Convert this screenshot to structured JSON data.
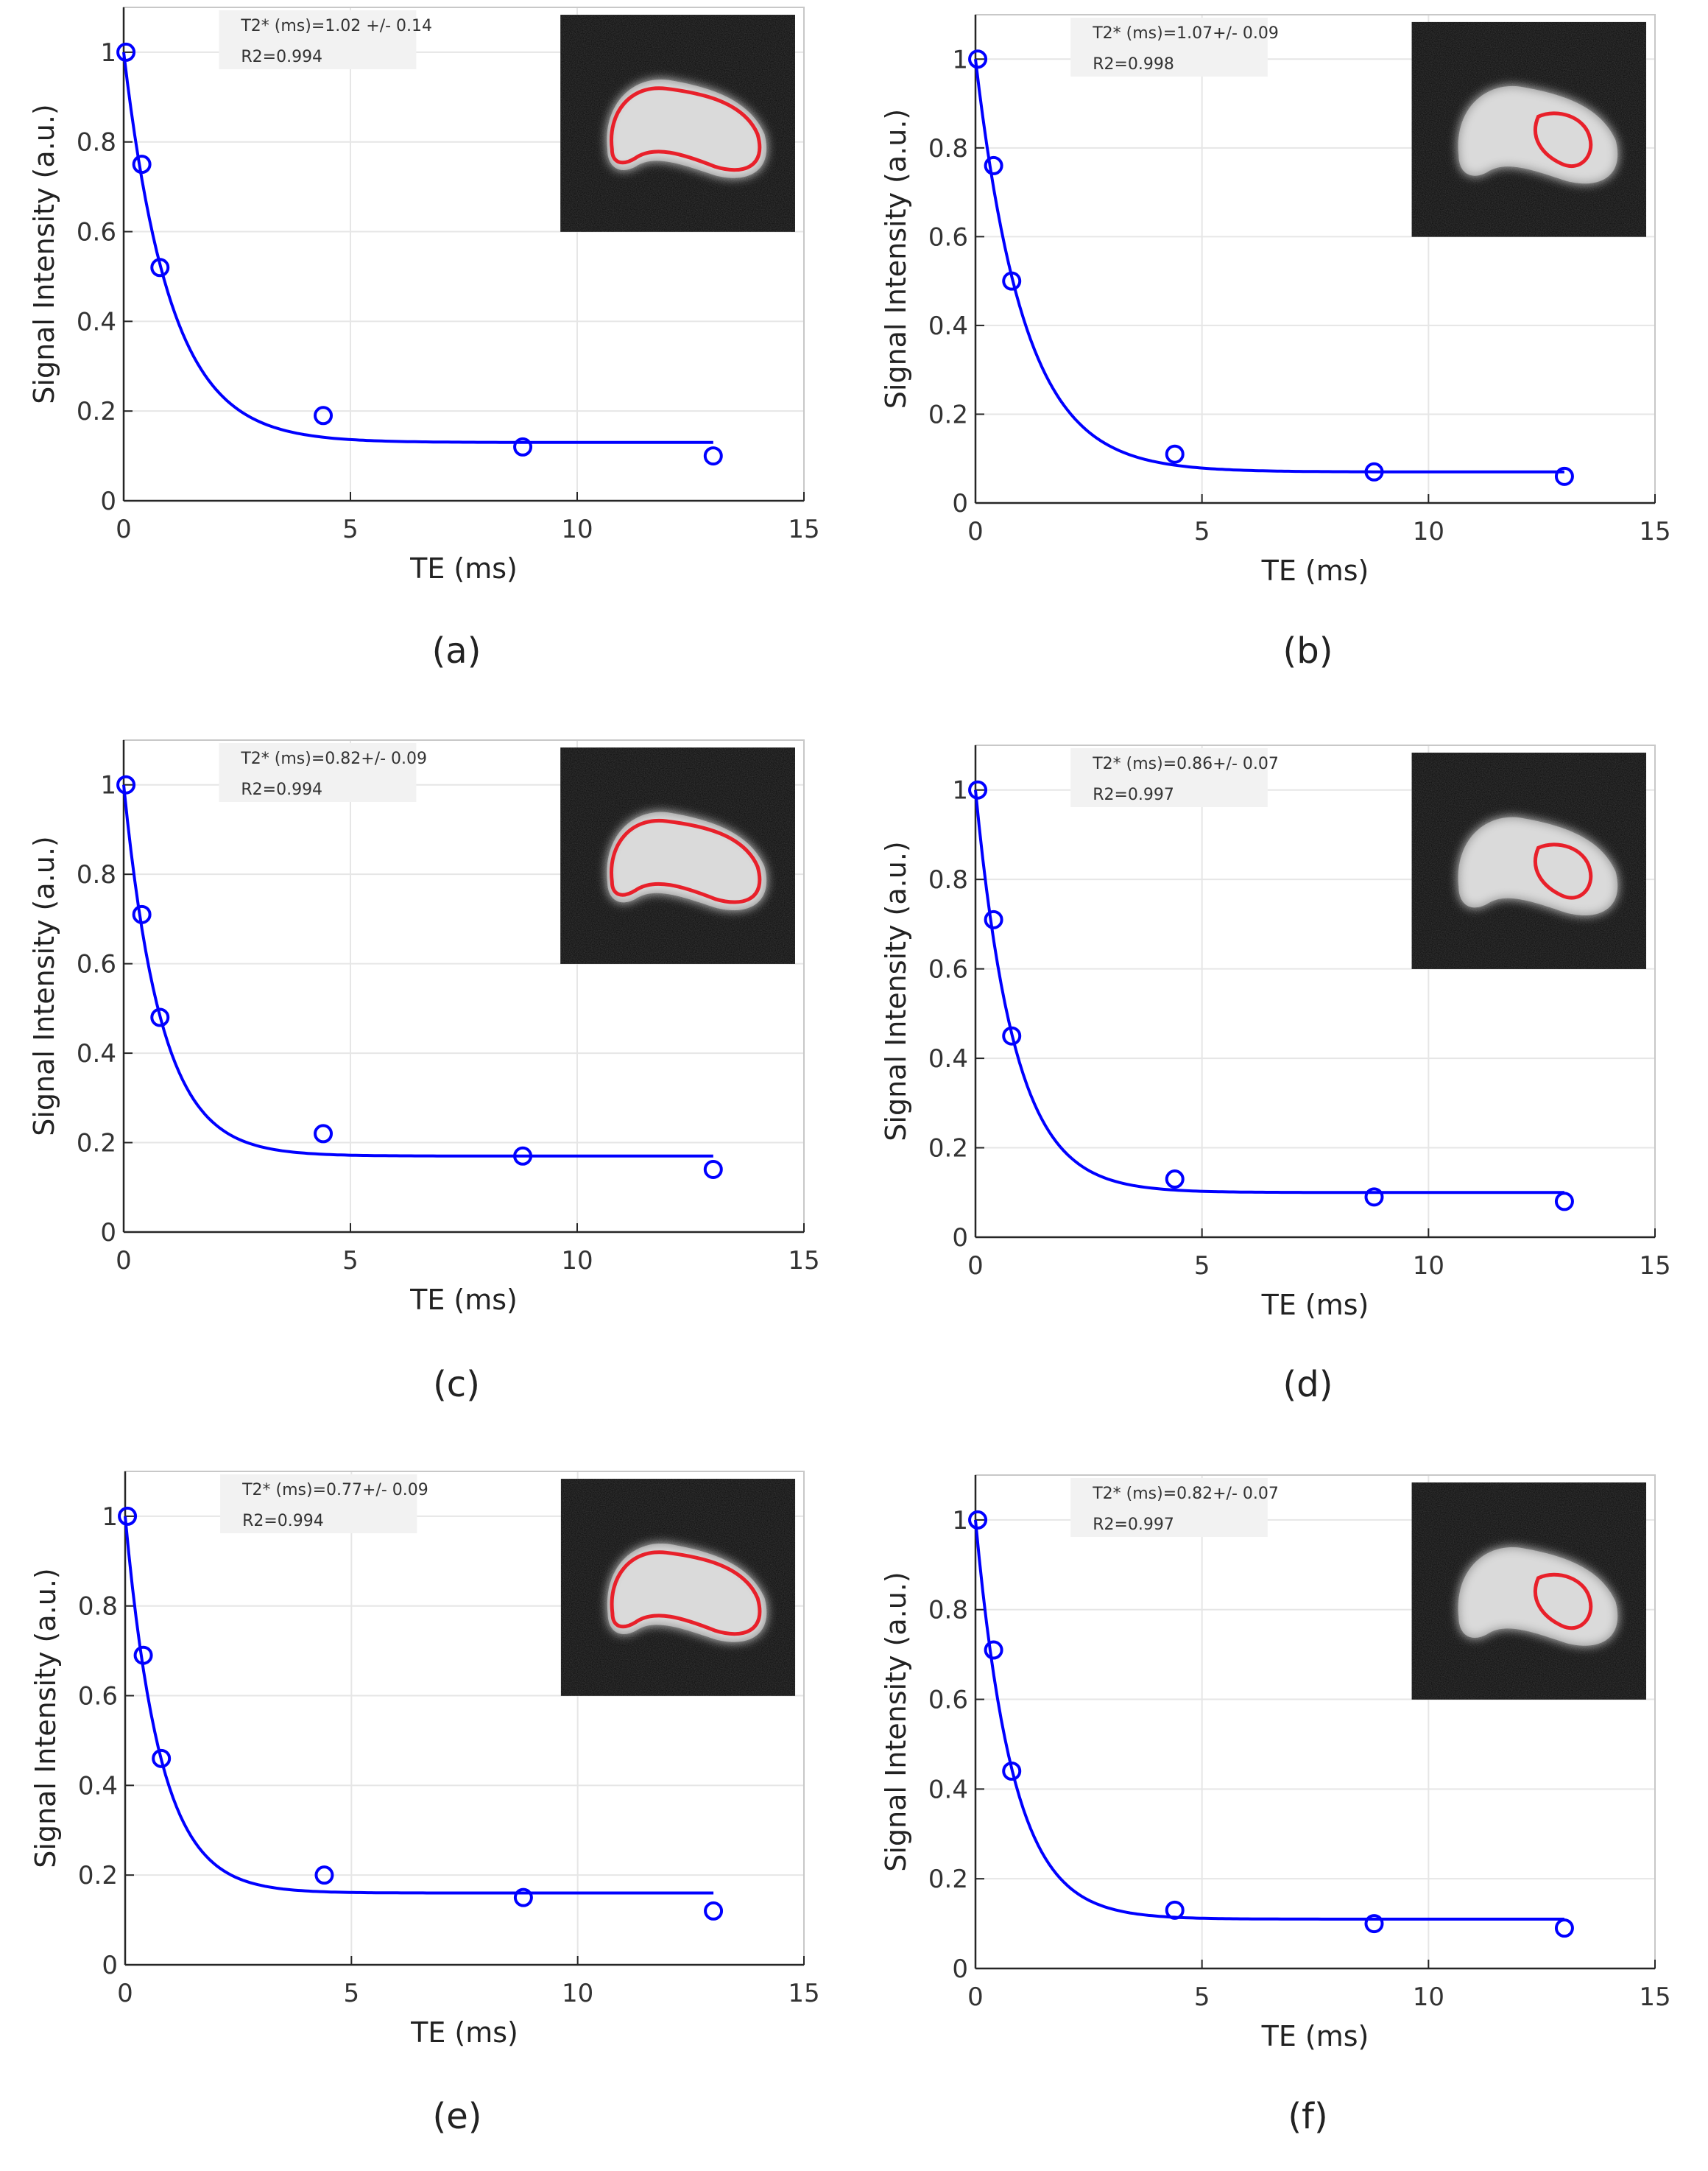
{
  "figure": {
    "panel_count": 6
  },
  "style": {
    "series_color": "#0000ff",
    "roi_color": "#e8202a",
    "grid_color": "#e6e6e6",
    "axis_color": "#262626",
    "annotation_bg": "#f2f2f2",
    "inset_bg": "#080808"
  },
  "chart_data": [
    {
      "panel": "(a)",
      "type": "scatter",
      "title": "",
      "xlabel": "TE (ms)",
      "ylabel": "Signal Intensity (a.u.)",
      "xlim": [
        0,
        15
      ],
      "ylim": [
        0,
        1.1
      ],
      "xticks": [
        "0",
        "5",
        "10",
        "15"
      ],
      "yticks": [
        "0",
        "0.2",
        "0.4",
        "0.6",
        "0.8",
        "1"
      ],
      "grid": true,
      "annotation": [
        "T2* (ms)=1.02 +/- 0.14",
        "R2=0.994"
      ],
      "inset": "whole ROI outline",
      "series": [
        {
          "name": "measured",
          "kind": "markers",
          "x": [
            0.05,
            0.4,
            0.8,
            4.4,
            8.8,
            13.0
          ],
          "y": [
            1.0,
            0.75,
            0.52,
            0.19,
            0.12,
            0.1
          ]
        },
        {
          "name": "fit",
          "kind": "curve",
          "model": {
            "amplitude": 0.87,
            "t2star": 1.02,
            "offset": 0.13,
            "x_range": [
              0,
              13
            ]
          }
        }
      ]
    },
    {
      "panel": "(b)",
      "type": "scatter",
      "title": "",
      "xlabel": "TE (ms)",
      "ylabel": "Signal Intensity (a.u.)",
      "xlim": [
        0,
        15
      ],
      "ylim": [
        0,
        1.1
      ],
      "xticks": [
        "0",
        "5",
        "10",
        "15"
      ],
      "yticks": [
        "0",
        "0.2",
        "0.4",
        "0.6",
        "0.8",
        "1"
      ],
      "grid": true,
      "annotation": [
        "T2* (ms)=1.07+/- 0.09",
        "R2=0.998"
      ],
      "inset": "sub ROI outline",
      "series": [
        {
          "name": "measured",
          "kind": "markers",
          "x": [
            0.05,
            0.4,
            0.8,
            4.4,
            8.8,
            13.0
          ],
          "y": [
            1.0,
            0.76,
            0.5,
            0.11,
            0.07,
            0.06
          ]
        },
        {
          "name": "fit",
          "kind": "curve",
          "model": {
            "amplitude": 0.93,
            "t2star": 1.07,
            "offset": 0.07,
            "x_range": [
              0,
              13
            ]
          }
        }
      ]
    },
    {
      "panel": "(c)",
      "type": "scatter",
      "title": "",
      "xlabel": "TE (ms)",
      "ylabel": "Signal Intensity (a.u.)",
      "xlim": [
        0,
        15
      ],
      "ylim": [
        0,
        1.1
      ],
      "xticks": [
        "0",
        "5",
        "10",
        "15"
      ],
      "yticks": [
        "0",
        "0.2",
        "0.4",
        "0.6",
        "0.8",
        "1"
      ],
      "grid": true,
      "annotation": [
        "T2* (ms)=0.82+/- 0.09",
        "R2=0.994"
      ],
      "inset": "whole ROI outline",
      "series": [
        {
          "name": "measured",
          "kind": "markers",
          "x": [
            0.05,
            0.4,
            0.8,
            4.4,
            8.8,
            13.0
          ],
          "y": [
            1.0,
            0.71,
            0.48,
            0.22,
            0.17,
            0.14
          ]
        },
        {
          "name": "fit",
          "kind": "curve",
          "model": {
            "amplitude": 0.83,
            "t2star": 0.82,
            "offset": 0.17,
            "x_range": [
              0,
              13
            ]
          }
        }
      ]
    },
    {
      "panel": "(d)",
      "type": "scatter",
      "title": "",
      "xlabel": "TE (ms)",
      "ylabel": "Signal Intensity (a.u.)",
      "xlim": [
        0,
        15
      ],
      "ylim": [
        0,
        1.1
      ],
      "xticks": [
        "0",
        "5",
        "10",
        "15"
      ],
      "yticks": [
        "0",
        "0.2",
        "0.4",
        "0.6",
        "0.8",
        "1"
      ],
      "grid": true,
      "annotation": [
        "T2* (ms)=0.86+/- 0.07",
        "R2=0.997"
      ],
      "inset": "sub ROI outline",
      "series": [
        {
          "name": "measured",
          "kind": "markers",
          "x": [
            0.05,
            0.4,
            0.8,
            4.4,
            8.8,
            13.0
          ],
          "y": [
            1.0,
            0.71,
            0.45,
            0.13,
            0.09,
            0.08
          ]
        },
        {
          "name": "fit",
          "kind": "curve",
          "model": {
            "amplitude": 0.9,
            "t2star": 0.86,
            "offset": 0.1,
            "x_range": [
              0,
              13
            ]
          }
        }
      ]
    },
    {
      "panel": "(e)",
      "type": "scatter",
      "title": "",
      "xlabel": "TE (ms)",
      "ylabel": "Signal Intensity (a.u.)",
      "xlim": [
        0,
        15
      ],
      "ylim": [
        0,
        1.1
      ],
      "xticks": [
        "0",
        "5",
        "10",
        "15"
      ],
      "yticks": [
        "0",
        "0.2",
        "0.4",
        "0.6",
        "0.8",
        "1"
      ],
      "grid": true,
      "annotation": [
        "T2* (ms)=0.77+/- 0.09",
        "R2=0.994"
      ],
      "inset": "whole ROI outline",
      "series": [
        {
          "name": "measured",
          "kind": "markers",
          "x": [
            0.05,
            0.4,
            0.8,
            4.4,
            8.8,
            13.0
          ],
          "y": [
            1.0,
            0.69,
            0.46,
            0.2,
            0.15,
            0.12
          ]
        },
        {
          "name": "fit",
          "kind": "curve",
          "model": {
            "amplitude": 0.84,
            "t2star": 0.77,
            "offset": 0.16,
            "x_range": [
              0,
              13
            ]
          }
        }
      ]
    },
    {
      "panel": "(f)",
      "type": "scatter",
      "title": "",
      "xlabel": "TE (ms)",
      "ylabel": "Signal Intensity (a.u.)",
      "xlim": [
        0,
        15
      ],
      "ylim": [
        0,
        1.1
      ],
      "xticks": [
        "0",
        "5",
        "10",
        "15"
      ],
      "yticks": [
        "0",
        "0.2",
        "0.4",
        "0.6",
        "0.8",
        "1"
      ],
      "grid": true,
      "annotation": [
        "T2* (ms)=0.82+/- 0.07",
        "R2=0.997"
      ],
      "inset": "sub ROI outline",
      "series": [
        {
          "name": "measured",
          "kind": "markers",
          "x": [
            0.05,
            0.4,
            0.8,
            4.4,
            8.8,
            13.0
          ],
          "y": [
            1.0,
            0.71,
            0.44,
            0.13,
            0.1,
            0.09
          ]
        },
        {
          "name": "fit",
          "kind": "curve",
          "model": {
            "amplitude": 0.89,
            "t2star": 0.82,
            "offset": 0.11,
            "x_range": [
              0,
              13
            ]
          }
        }
      ]
    }
  ]
}
